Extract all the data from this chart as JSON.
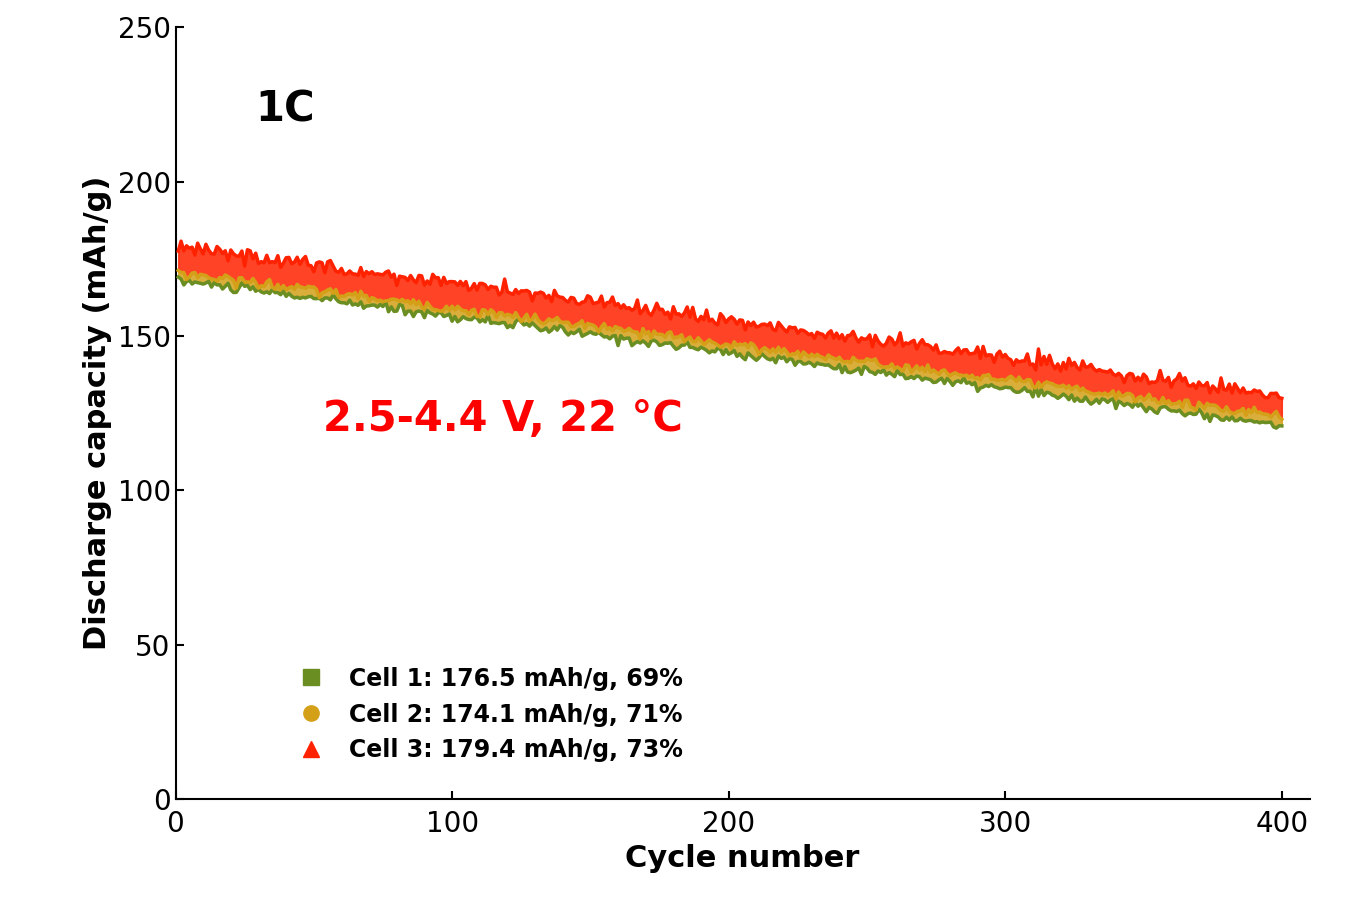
{
  "title_text": "1C",
  "annotation_text": "2.5-4.4 V, 22 °C",
  "annotation_color": "#ff0000",
  "xlabel": "Cycle number",
  "ylabel": "Discharge capacity (mAh/g)",
  "xlim": [
    0,
    410
  ],
  "ylim": [
    0,
    250
  ],
  "xticks": [
    0,
    100,
    200,
    300,
    400
  ],
  "yticks": [
    0,
    50,
    100,
    150,
    200,
    250
  ],
  "n_cycles": 400,
  "cell1": {
    "start": 168.0,
    "end": 121.0,
    "noise": 0.8,
    "color": "#6b8e23",
    "marker": "s",
    "label": "Cell 1: 176.5 mAh/g, 69%"
  },
  "cell2": {
    "start": 170.5,
    "end": 124.0,
    "noise": 0.8,
    "color": "#d4a017",
    "marker": "o",
    "label": "Cell 2: 174.1 mAh/g, 71%"
  },
  "cell3": {
    "start": 179.0,
    "end": 131.0,
    "noise": 1.2,
    "color": "#ff2200",
    "marker": "^",
    "label": "Cell 3: 179.4 mAh/g, 73%"
  },
  "background_color": "#ffffff",
  "legend_fontsize": 17,
  "title_fontsize": 30,
  "annotation_fontsize": 30,
  "axis_label_fontsize": 22,
  "tick_fontsize": 20,
  "line_width": 2.5
}
